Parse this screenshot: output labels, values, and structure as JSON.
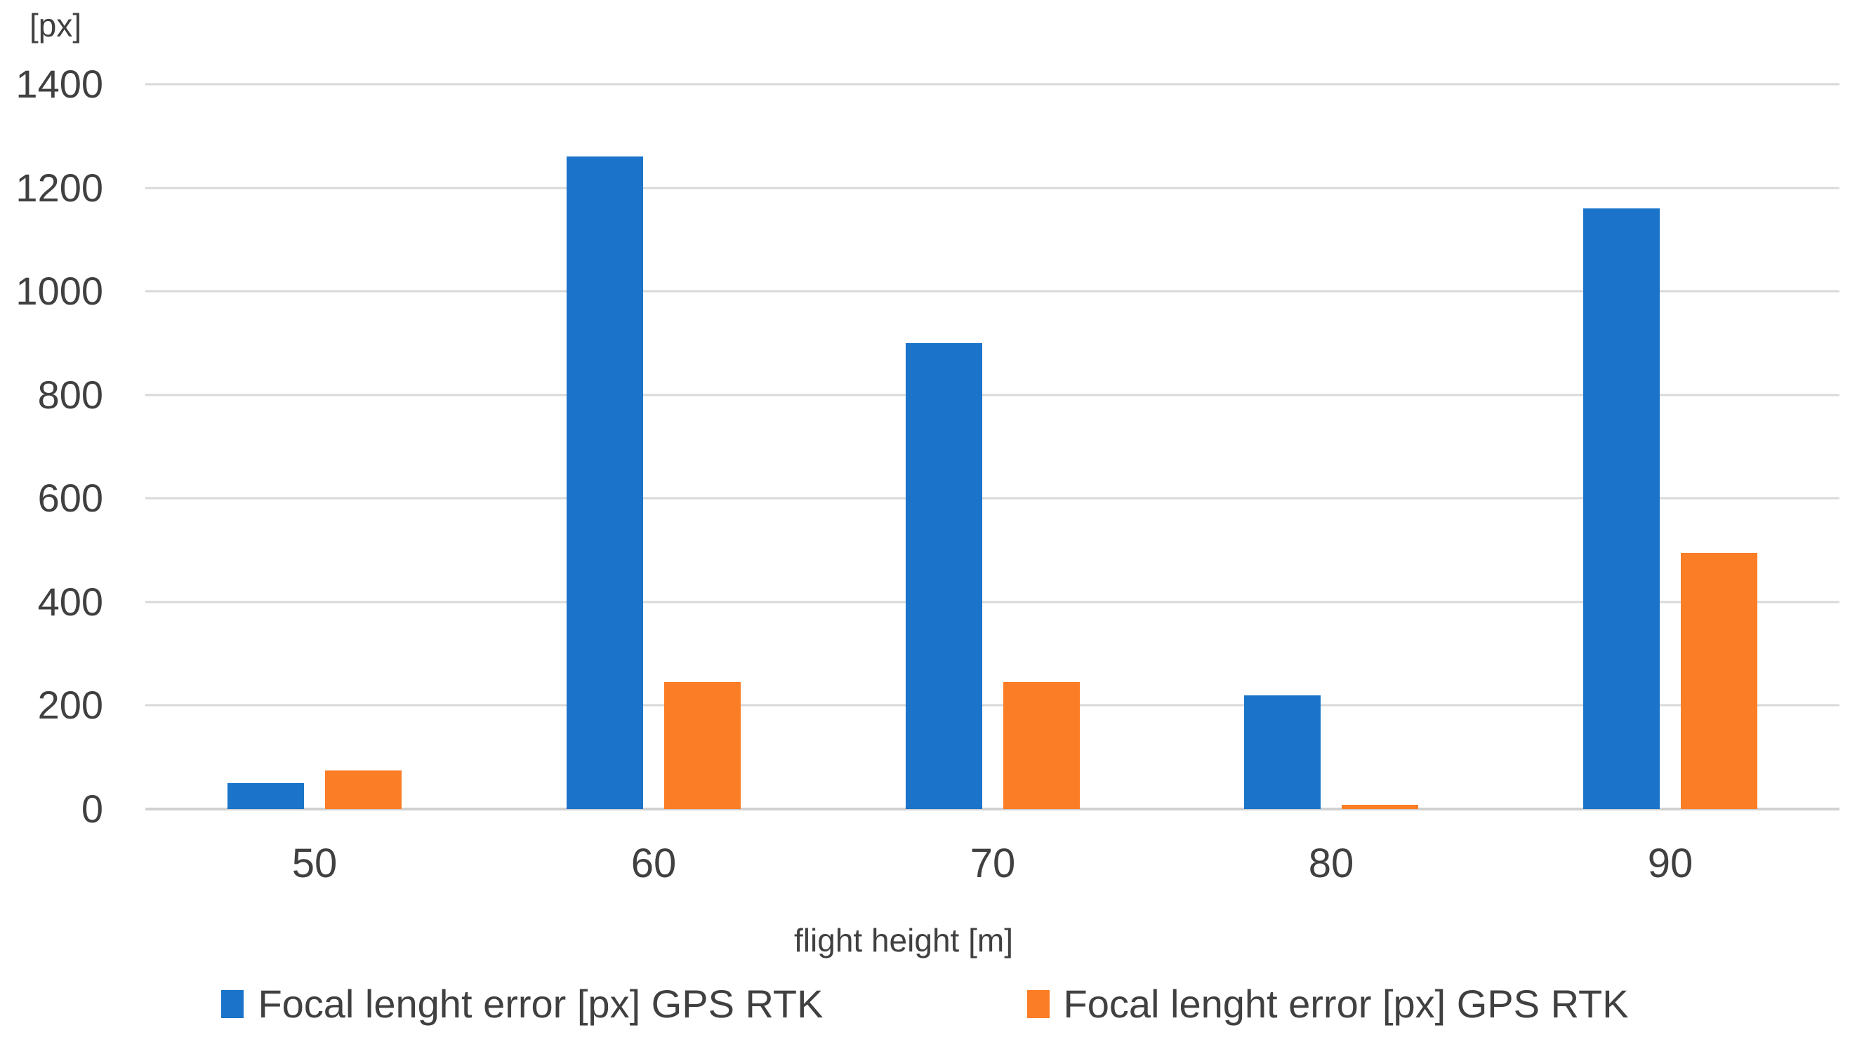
{
  "chart_data": {
    "type": "bar",
    "title": "",
    "y_axis_label": "[px]",
    "x_axis_label": "flight height [m]",
    "categories": [
      "50",
      "60",
      "70",
      "80",
      "90"
    ],
    "series": [
      {
        "name": "Focal lenght error [px] GPS RTK",
        "color": "#1B74C9",
        "values": [
          50,
          1260,
          900,
          220,
          1160
        ]
      },
      {
        "name": "Focal lenght error [px] GPS RTK",
        "color": "#FB7D26",
        "values": [
          75,
          245,
          245,
          8,
          495
        ]
      }
    ],
    "y_axis": {
      "min": 0,
      "max": 1400,
      "ticks": [
        0,
        200,
        400,
        600,
        800,
        1000,
        1200,
        1400
      ]
    },
    "grid": "horizontal",
    "legend_position": "bottom"
  },
  "style_colors": {
    "text": "#404040",
    "gridline": "#D9D9D9",
    "baseline": "#D0D0D0",
    "background": "#FFFFFF"
  }
}
